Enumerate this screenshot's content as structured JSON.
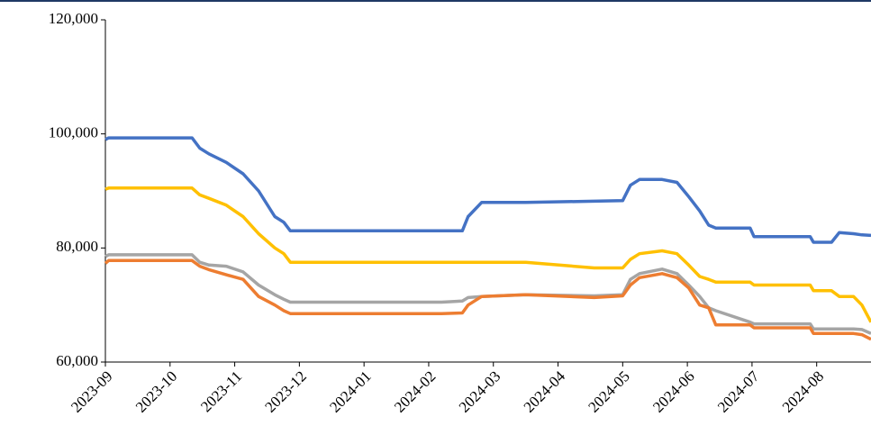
{
  "chart_data": {
    "type": "line",
    "x": [
      0,
      0.05,
      1.34,
      1.46,
      1.6,
      1.87,
      2.13,
      2.37,
      2.62,
      2.76,
      2.86,
      3.5,
      5.2,
      5.52,
      5.61,
      5.82,
      6.5,
      7.56,
      8.0,
      8.12,
      8.26,
      8.61,
      8.84,
      9.02,
      9.19,
      9.33,
      9.44,
      9.97,
      10.03,
      10.9,
      10.95,
      11.23,
      11.35,
      11.57,
      11.7,
      11.84
    ],
    "series": [
      {
        "color": "#4472c4",
        "values": [
          99000,
          99300,
          99300,
          97500,
          96500,
          95000,
          93000,
          90000,
          85500,
          84500,
          83000,
          83000,
          83000,
          83000,
          85500,
          88000,
          88000,
          88200,
          88300,
          91000,
          92000,
          92000,
          91500,
          89000,
          86500,
          84000,
          83500,
          83500,
          82000,
          82000,
          81000,
          81000,
          82700,
          82500,
          82300,
          82200
        ]
      },
      {
        "color": "#ffc000",
        "values": [
          90300,
          90500,
          90500,
          89300,
          88700,
          87500,
          85500,
          82500,
          80000,
          79000,
          77500,
          77500,
          77500,
          77500,
          77500,
          77500,
          77500,
          76500,
          76500,
          78000,
          79000,
          79500,
          79000,
          77000,
          75000,
          74500,
          74000,
          74000,
          73500,
          73500,
          72500,
          72500,
          71500,
          71500,
          70000,
          67000
        ]
      },
      {
        "color": "#a5a5a5",
        "values": [
          78500,
          78800,
          78800,
          77500,
          77000,
          76800,
          75800,
          73500,
          71800,
          71000,
          70500,
          70500,
          70500,
          70700,
          71300,
          71500,
          71800,
          71600,
          71800,
          74500,
          75500,
          76300,
          75500,
          73500,
          71500,
          69500,
          69000,
          67000,
          66700,
          66700,
          65800,
          65800,
          65800,
          65800,
          65700,
          65000
        ]
      },
      {
        "color": "#ed7d31",
        "values": [
          77300,
          77800,
          77800,
          76800,
          76200,
          75300,
          74500,
          71500,
          70000,
          69000,
          68500,
          68500,
          68500,
          68600,
          70000,
          71500,
          71800,
          71300,
          71600,
          73500,
          74800,
          75500,
          74800,
          73000,
          70000,
          69500,
          66500,
          66500,
          66000,
          66000,
          65000,
          65000,
          65000,
          65000,
          64800,
          64000
        ]
      }
    ],
    "xlim": [
      0,
      11.84
    ],
    "xticks": [
      {
        "value": 0,
        "label": "2023-09"
      },
      {
        "value": 1,
        "label": "2023-10"
      },
      {
        "value": 2,
        "label": "2023-11"
      },
      {
        "value": 3,
        "label": "2023-12"
      },
      {
        "value": 4,
        "label": "2024-01"
      },
      {
        "value": 5,
        "label": "2024-02"
      },
      {
        "value": 6,
        "label": "2024-03"
      },
      {
        "value": 7,
        "label": "2024-04"
      },
      {
        "value": 8,
        "label": "2024-05"
      },
      {
        "value": 9,
        "label": "2024-06"
      },
      {
        "value": 10,
        "label": "2024-07"
      },
      {
        "value": 11,
        "label": "2024-08"
      }
    ],
    "ylim": [
      60000,
      120000
    ],
    "yticks": [
      {
        "value": 60000,
        "label": "60,000"
      },
      {
        "value": 80000,
        "label": "80,000"
      },
      {
        "value": 100000,
        "label": "100,000"
      },
      {
        "value": 120000,
        "label": "120,000"
      }
    ],
    "grid": false
  }
}
